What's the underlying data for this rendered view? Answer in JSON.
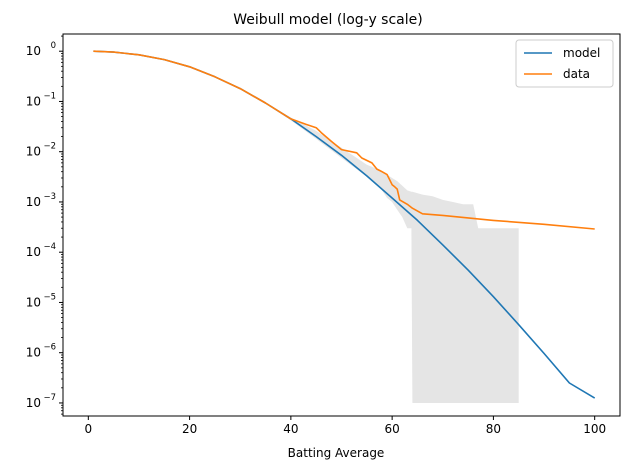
{
  "chart_data": {
    "type": "line",
    "title": "Weibull model (log-y scale)",
    "xlabel": "Batting Average",
    "ylabel": "",
    "y_scale": "log",
    "xlim": [
      -5,
      105
    ],
    "ylim": [
      5.5e-08,
      2.2
    ],
    "x_ticks": [
      0,
      20,
      40,
      60,
      80,
      100
    ],
    "x_tick_labels": [
      "0",
      "20",
      "40",
      "60",
      "80",
      "100"
    ],
    "y_ticks": [
      1e-07,
      1e-06,
      1e-05,
      0.0001,
      0.001,
      0.01,
      0.1,
      1
    ],
    "y_tick_labels": [
      "10",
      "10",
      "10",
      "10",
      "10",
      "10",
      "10",
      "10"
    ],
    "y_tick_exponents": [
      "−7",
      "−6",
      "−5",
      "−4",
      "−3",
      "−2",
      "−1",
      "0"
    ],
    "grid": false,
    "legend": {
      "position": "top-right"
    },
    "colors": {
      "model": "#1f77b4",
      "data": "#ff7f0e",
      "band": "#e5e5e5"
    },
    "series": [
      {
        "name": "model",
        "x": [
          1,
          5,
          10,
          15,
          20,
          25,
          30,
          35,
          40,
          45,
          50,
          55,
          60,
          65,
          70,
          75,
          80,
          85,
          90,
          95,
          100
        ],
        "values": [
          1.0,
          0.96,
          0.85,
          0.68,
          0.49,
          0.31,
          0.18,
          0.093,
          0.045,
          0.02,
          0.0085,
          0.0033,
          0.0012,
          0.00043,
          0.00014,
          4.4e-05,
          1.3e-05,
          3.6e-06,
          9.7e-07,
          2.5e-07,
          1.25e-07
        ]
      },
      {
        "name": "data",
        "x": [
          1,
          5,
          10,
          15,
          20,
          25,
          30,
          35,
          40,
          43,
          45,
          46,
          48,
          50,
          53,
          54,
          56,
          57,
          58,
          59,
          60,
          60.5,
          61,
          61.5,
          63,
          64,
          66,
          70,
          80,
          90,
          100
        ],
        "values": [
          1.0,
          0.96,
          0.85,
          0.68,
          0.49,
          0.31,
          0.18,
          0.093,
          0.045,
          0.035,
          0.03,
          0.024,
          0.016,
          0.011,
          0.0095,
          0.0075,
          0.006,
          0.0045,
          0.004,
          0.0035,
          0.0022,
          0.002,
          0.0018,
          0.0011,
          0.0009,
          0.00075,
          0.00058,
          0.00054,
          0.00043,
          0.00036,
          0.00029
        ]
      }
    ],
    "band": {
      "x": [
        1,
        5,
        10,
        15,
        20,
        25,
        30,
        35,
        40,
        45,
        50,
        55,
        56,
        57,
        58,
        59,
        60,
        61,
        62,
        63,
        63.8,
        64,
        66,
        68,
        70,
        72,
        74,
        76,
        77,
        80,
        82,
        85
      ],
      "upper": [
        1.0,
        0.96,
        0.85,
        0.68,
        0.49,
        0.31,
        0.18,
        0.095,
        0.048,
        0.026,
        0.012,
        0.0055,
        0.005,
        0.0045,
        0.004,
        0.0035,
        0.003,
        0.0026,
        0.0021,
        0.0017,
        0.0016,
        0.0016,
        0.0014,
        0.0013,
        0.0011,
        0.001,
        0.0009,
        0.0009,
        0.0003,
        0.0003,
        0.0003,
        0.0003
      ],
      "lower": [
        1.0,
        0.96,
        0.85,
        0.68,
        0.49,
        0.31,
        0.18,
        0.09,
        0.042,
        0.018,
        0.0075,
        0.0032,
        0.0028,
        0.0022,
        0.0017,
        0.0012,
        0.001,
        0.0007,
        0.0005,
        0.0003,
        0.0003,
        1e-07,
        1e-07,
        1e-07,
        1e-07,
        1e-07,
        1e-07,
        1e-07,
        1e-07,
        1e-07,
        1e-07,
        1e-07
      ]
    }
  }
}
